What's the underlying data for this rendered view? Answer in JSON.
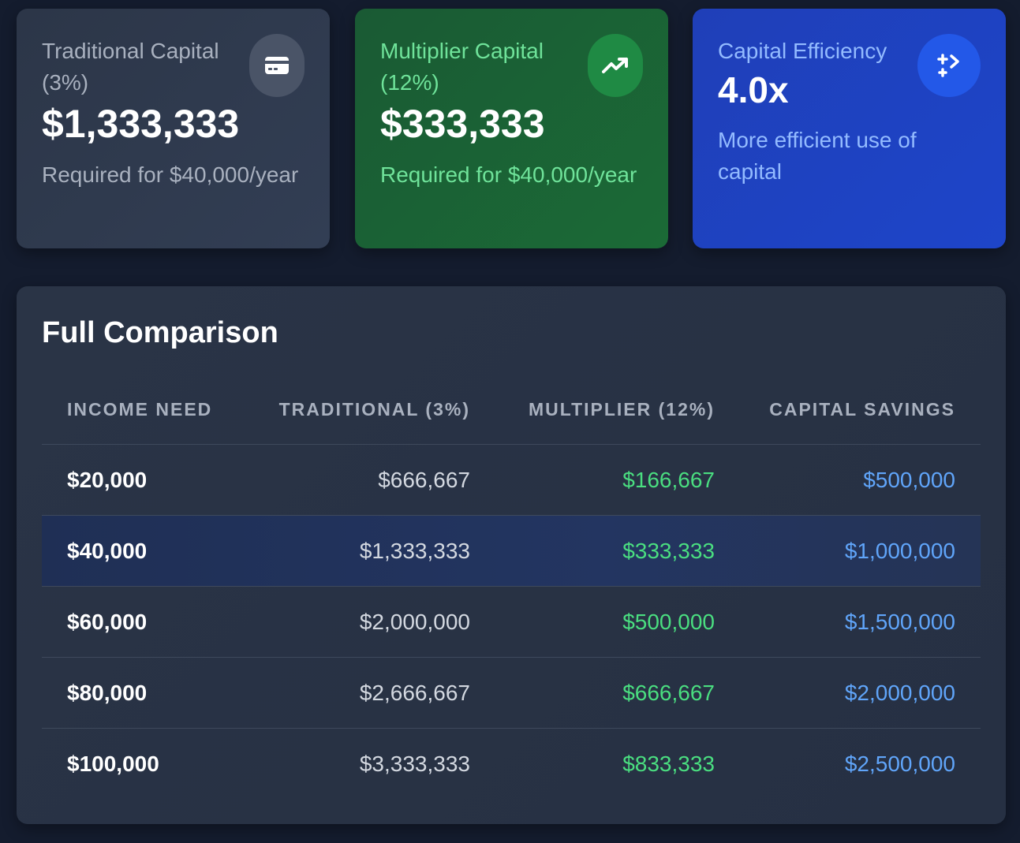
{
  "cards": {
    "traditional": {
      "label": "Traditional Capital (3%)",
      "value": "$1,333,333",
      "sub": "Required for $40,000/year",
      "icon": "credit-card-icon"
    },
    "multiplier": {
      "label": "Multiplier Capital (12%)",
      "value": "$333,333",
      "sub": "Required for $40,000/year",
      "icon": "trending-up-icon"
    },
    "efficiency": {
      "label": "Capital Efficiency",
      "value": "4.0x",
      "sub": "More efficient use of capital",
      "icon": "swap-arrows-icon"
    }
  },
  "comparison": {
    "title": "Full Comparison",
    "headers": [
      "INCOME NEED",
      "TRADITIONAL (3%)",
      "MULTIPLIER (12%)",
      "CAPITAL SAVINGS"
    ],
    "rows": [
      {
        "income": "$20,000",
        "traditional": "$666,667",
        "multiplier": "$166,667",
        "savings": "$500,000"
      },
      {
        "income": "$40,000",
        "traditional": "$1,333,333",
        "multiplier": "$333,333",
        "savings": "$1,000,000",
        "highlighted": true
      },
      {
        "income": "$60,000",
        "traditional": "$2,000,000",
        "multiplier": "$500,000",
        "savings": "$1,500,000"
      },
      {
        "income": "$80,000",
        "traditional": "$2,666,667",
        "multiplier": "$666,667",
        "savings": "$2,000,000"
      },
      {
        "income": "$100,000",
        "traditional": "$3,333,333",
        "multiplier": "$833,333",
        "savings": "$2,500,000"
      }
    ]
  },
  "colors": {
    "background": "#141c2e",
    "green_accent": "#4ade80",
    "blue_accent": "#60a5fa",
    "highlight_row": "#233561"
  }
}
